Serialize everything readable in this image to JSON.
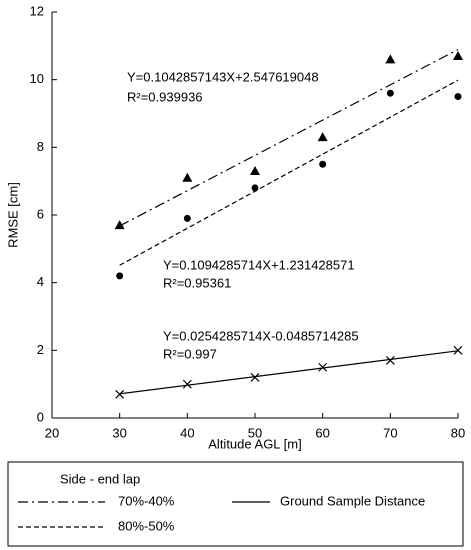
{
  "chart_data": {
    "type": "scatter",
    "x_label": "Altitude AGL [m]",
    "y_label": "RMSE [cm]",
    "x": [
      30,
      40,
      50,
      60,
      70,
      80
    ],
    "series": [
      {
        "name": "70%-40%",
        "color": "#000000",
        "marker": "triangle",
        "line": "dashdot",
        "values": [
          5.7,
          7.1,
          7.3,
          8.3,
          10.6,
          10.7
        ],
        "slope": 0.1042857143,
        "intercept": 2.547619048,
        "equation": "Y=0.1042857143X+2.547619048",
        "r2_label": "R²=0.939936"
      },
      {
        "name": "80%-50%",
        "color": "#000000",
        "marker": "circle",
        "line": "dashed",
        "values": [
          4.2,
          5.9,
          6.8,
          7.5,
          9.6,
          9.5
        ],
        "slope": 0.1094285714,
        "intercept": 1.231428571,
        "equation": "Y=0.1094285714X+1.231428571",
        "r2_label": "R²=0.95361"
      },
      {
        "name": "Ground Sample Distance",
        "color": "#000000",
        "marker": "x",
        "line": "solid",
        "values": [
          0.7,
          1.0,
          1.2,
          1.5,
          1.7,
          2.0
        ],
        "slope": 0.0254285714,
        "intercept": -0.0485714285,
        "equation": "Y=0.0254285714X-0.0485714285",
        "r2_label": "R²=0.997"
      }
    ],
    "legend_title": "Side - end lap",
    "legend": "below",
    "xlim": [
      20,
      80
    ],
    "xticks": [
      20,
      30,
      40,
      50,
      60,
      70,
      80
    ],
    "ylim": [
      0,
      12
    ],
    "yticks": [
      0,
      2,
      4,
      6,
      8,
      10,
      12
    ],
    "grid": false
  }
}
